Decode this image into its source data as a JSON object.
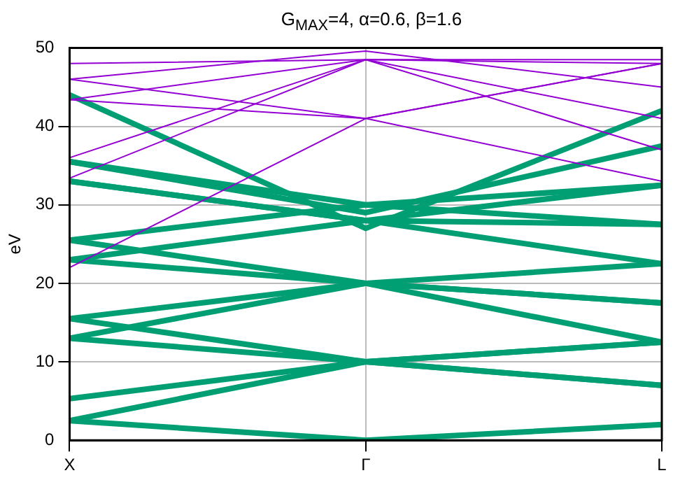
{
  "chart_data": {
    "type": "line",
    "title": "G$_{MAX}$=4, α=0.6, β=1.6",
    "ylabel": "eV",
    "categories": [
      "X",
      "Γ",
      "L"
    ],
    "ylim": [
      0,
      50
    ],
    "yticks": [
      0,
      10,
      20,
      30,
      40,
      50
    ],
    "grid": true,
    "series": [
      {
        "color": "#9400d3",
        "values": [
          46,
          49.6,
          45
        ]
      },
      {
        "color": "#9400d3",
        "values": [
          46,
          41,
          48
        ]
      },
      {
        "color": "#9400d3",
        "values": [
          43.4,
          48.5,
          48
        ]
      },
      {
        "color": "#9400d3",
        "values": [
          43.4,
          41,
          33
        ]
      },
      {
        "color": "#9400d3",
        "values": [
          33.4,
          48.5,
          37
        ]
      },
      {
        "color": "#9400d3",
        "values": [
          36,
          48.5,
          41
        ]
      },
      {
        "color": "#9400d3",
        "values": [
          22,
          41,
          48
        ]
      },
      {
        "color": "#9400d3",
        "values": [
          48,
          48.5,
          48.5
        ]
      },
      {
        "color": "#009e73",
        "values": [
          2.5,
          0,
          2
        ]
      },
      {
        "color": "#009e73",
        "values": [
          2.5,
          10,
          7
        ]
      },
      {
        "color": "#009e73",
        "values": [
          5.3,
          10,
          12.5
        ]
      },
      {
        "color": "#009e73",
        "values": [
          13,
          10,
          7
        ]
      },
      {
        "color": "#009e73",
        "values": [
          15.5,
          10,
          12.5
        ]
      },
      {
        "color": "#009e73",
        "values": [
          13,
          20,
          17.5
        ]
      },
      {
        "color": "#009e73",
        "values": [
          15.5,
          20,
          22.5
        ]
      },
      {
        "color": "#009e73",
        "values": [
          23,
          20,
          12.5
        ]
      },
      {
        "color": "#009e73",
        "values": [
          25.5,
          20,
          17.5
        ]
      },
      {
        "color": "#009e73",
        "values": [
          23,
          28,
          22.5
        ]
      },
      {
        "color": "#009e73",
        "values": [
          25.5,
          30,
          27.5
        ]
      },
      {
        "color": "#009e73",
        "values": [
          33,
          28,
          27.5
        ]
      },
      {
        "color": "#009e73",
        "values": [
          35.5,
          30,
          32.5
        ]
      },
      {
        "color": "#009e73",
        "values": [
          33,
          28,
          32.5
        ]
      },
      {
        "color": "#009e73",
        "values": [
          35.5,
          29,
          37.5
        ]
      },
      {
        "color": "#009e73",
        "values": [
          44,
          27,
          42
        ]
      }
    ]
  }
}
